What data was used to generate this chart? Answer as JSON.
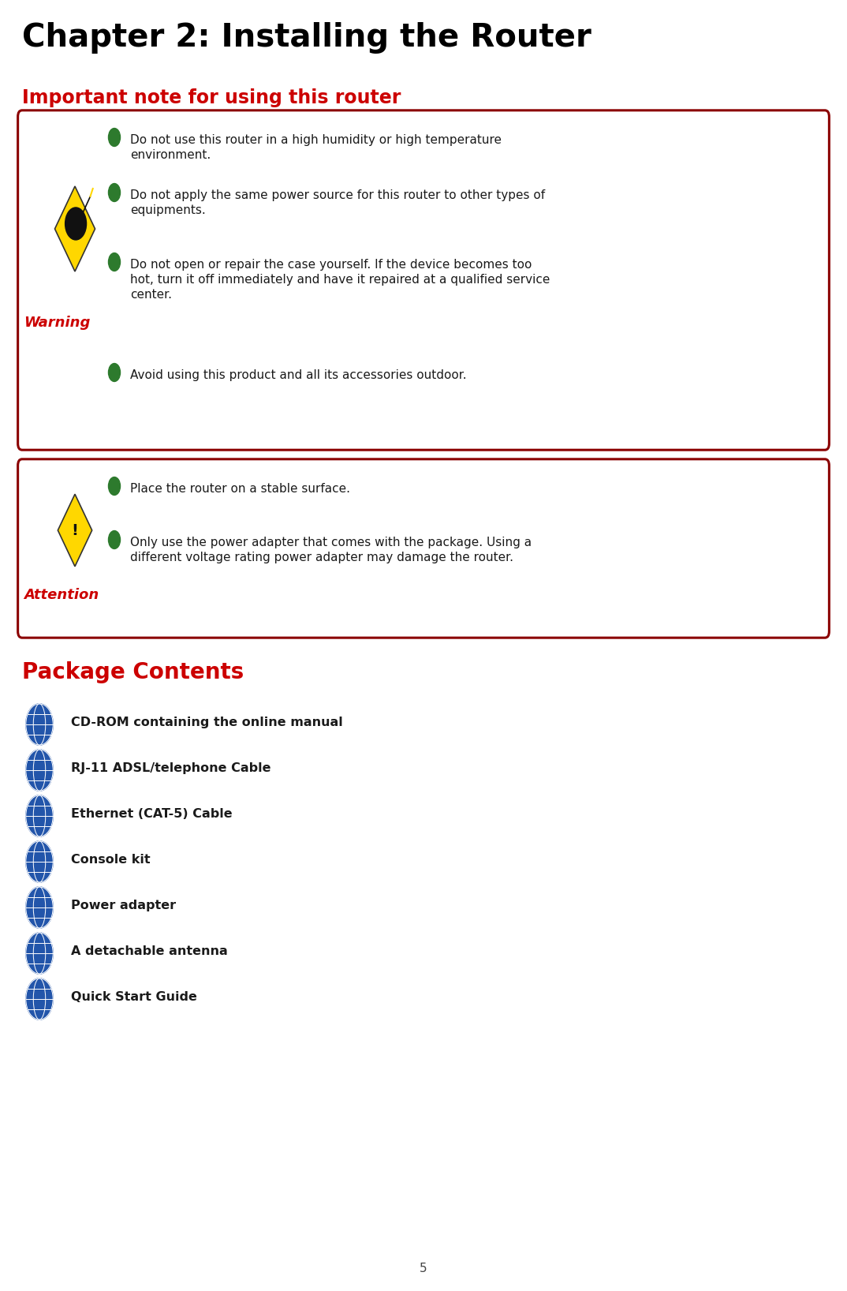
{
  "title": "Chapter 2: Installing the Router",
  "section1_title": "Important note for using this router",
  "warning_items": [
    "Do not use this router in a high humidity or high temperature\nenvironment.",
    "Do not apply the same power source for this router to other types of\nequipments.",
    "Do not open or repair the case yourself. If the device becomes too\nhot, turn it off immediately and have it repaired at a qualified service\ncenter.",
    "Avoid using this product and all its accessories outdoor."
  ],
  "attention_items": [
    "Place the router on a stable surface.",
    "Only use the power adapter that comes with the package. Using a\ndifferent voltage rating power adapter may damage the router."
  ],
  "section2_title": "Package Contents",
  "package_items": [
    "CD-ROM containing the online manual",
    "RJ-11 ADSL/telephone Cable",
    "Ethernet (CAT-5) Cable",
    "Console kit",
    "Power adapter",
    "A detachable antenna",
    "Quick Start Guide"
  ],
  "page_number": "5",
  "bg_color": "#ffffff",
  "title_color": "#000000",
  "section_color": "#cc0000",
  "warning_label_color": "#cc0000",
  "box_border_color": "#8b0000",
  "bullet_color": "#2d7a2d",
  "text_color": "#1a1a1a",
  "globe_body_color": "#2255aa",
  "globe_line_color": "#ffffff",
  "globe_ring_color": "#cc3300"
}
